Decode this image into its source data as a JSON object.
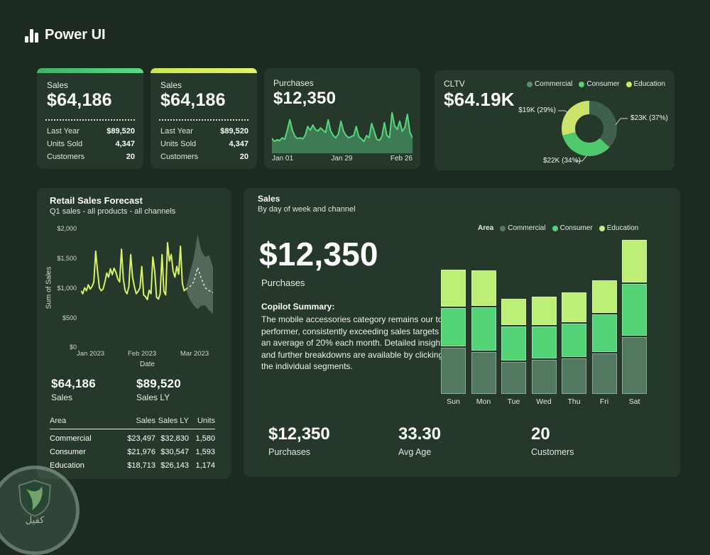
{
  "app": {
    "title": "Power UI"
  },
  "theme": {
    "page_bg": "#1c2a21",
    "card_bg": "#253829",
    "accent_green": "#57d77d",
    "accent_lime": "#d9f06a"
  },
  "cards": {
    "sales_a": {
      "label": "Sales",
      "value": "$64,186",
      "rows": [
        {
          "label": "Last Year",
          "value": "$89,520"
        },
        {
          "label": "Units Sold",
          "value": "4,347"
        },
        {
          "label": "Customers",
          "value": "20"
        }
      ]
    },
    "sales_b": {
      "label": "Sales",
      "value": "$64,186",
      "rows": [
        {
          "label": "Last Year",
          "value": "$89,520"
        },
        {
          "label": "Units Sold",
          "value": "4,347"
        },
        {
          "label": "Customers",
          "value": "20"
        }
      ]
    },
    "purchases": {
      "label": "Purchases",
      "value": "$12,350",
      "x_labels": [
        "Jan 01",
        "Jan 29",
        "Feb 26"
      ]
    },
    "cltv": {
      "label": "CLTV",
      "value": "$64.19K",
      "legend": [
        {
          "name": "Commercial",
          "color": "#5b8b6e"
        },
        {
          "name": "Consumer",
          "color": "#57cf78"
        },
        {
          "name": "Education",
          "color": "#cfe96a"
        }
      ]
    },
    "retail": {
      "title": "Retail Sales Forecast",
      "subtitle": "Q1 sales - all products - all channels",
      "y_axis_label": "Sum of Sales",
      "x_axis_label": "Date",
      "y_ticks": [
        "$2,000",
        "$1,500",
        "$1,000",
        "$500",
        "$0"
      ],
      "x_ticks": [
        "Jan 2023",
        "Feb 2023",
        "Mar 2023"
      ],
      "kpis": [
        {
          "value": "$64,186",
          "label": "Sales"
        },
        {
          "value": "$89,520",
          "label": "Sales LY"
        }
      ],
      "table": {
        "headers": [
          "Area",
          "Sales",
          "Sales LY",
          "Units"
        ],
        "rows": [
          {
            "area": "Commercial",
            "sales": "$23,497",
            "sales_ly": "$32,830",
            "units": "1,580"
          },
          {
            "area": "Consumer",
            "sales": "$21,976",
            "sales_ly": "$30,547",
            "units": "1,593"
          },
          {
            "area": "Education",
            "sales": "$18,713",
            "sales_ly": "$26,143",
            "units": "1,174"
          }
        ]
      }
    },
    "sales_by_day": {
      "title": "Sales",
      "subtitle": "By day of week and channel",
      "kpi_value": "$12,350",
      "kpi_label": "Purchases",
      "copilot_title": "Copilot Summary:",
      "copilot_body": "The mobile accessories category remains our top performer, consistently exceeding sales targets by an average of 20% each month. Detailed insights and further breakdowns are available by clicking on the individual segments.",
      "legend_title": "Area",
      "legend": [
        {
          "name": "Commercial",
          "color": "#52795f"
        },
        {
          "name": "Consumer",
          "color": "#53d276"
        },
        {
          "name": "Education",
          "color": "#bdee75"
        }
      ],
      "footer_kpis": [
        {
          "value": "$12,350",
          "label": "Purchases"
        },
        {
          "value": "33.30",
          "label": "Avg Age"
        },
        {
          "value": "20",
          "label": "Customers"
        }
      ]
    }
  },
  "watermark": {
    "text": "كفيل"
  },
  "chart_data": [
    {
      "id": "purchases-sparkline",
      "type": "area",
      "title": "Purchases",
      "total": "$12,350",
      "x_ticks": [
        "Jan 01",
        "Jan 29",
        "Feb 26"
      ],
      "line_color": "#57d77d",
      "fill_color": "#3e7a54",
      "values": [
        0.28,
        0.2,
        0.25,
        0.22,
        0.3,
        0.26,
        0.5,
        0.78,
        0.5,
        0.34,
        0.28,
        0.3,
        0.27,
        0.36,
        0.6,
        0.5,
        0.64,
        0.52,
        0.48,
        0.56,
        0.5,
        0.44,
        0.78,
        0.48,
        0.36,
        0.3,
        0.4,
        0.74,
        0.48,
        0.36,
        0.3,
        0.33,
        0.36,
        0.6,
        0.33,
        0.27,
        0.2,
        0.36,
        0.3,
        0.68,
        0.48,
        0.26,
        0.23,
        0.33,
        0.7,
        0.36,
        0.3,
        0.97,
        0.62,
        0.52,
        0.74,
        0.47,
        0.58,
        0.92,
        0.44,
        0.3
      ]
    },
    {
      "id": "cltv-donut",
      "type": "pie",
      "title": "CLTV",
      "total": "$64.19K",
      "legend_position": "top-right",
      "slices": [
        {
          "name": "Commercial",
          "value": 23000,
          "pct": 37,
          "label": "$23K (37%)",
          "color": "#3f604c"
        },
        {
          "name": "Consumer",
          "value": 22000,
          "pct": 34,
          "label": "$22K (34%)",
          "color": "#4fc86e"
        },
        {
          "name": "Education",
          "value": 19000,
          "pct": 29,
          "label": "$19K (29%)",
          "color": "#cbe36a"
        }
      ]
    },
    {
      "id": "retail-line",
      "type": "line",
      "title": "Retail Sales Forecast",
      "xlabel": "Date",
      "ylabel": "Sum of Sales",
      "ylim": [
        0,
        2000
      ],
      "x_ticks": [
        "Jan 2023",
        "Feb 2023",
        "Mar 2023"
      ],
      "line_color": "#d9f06a",
      "forecast_color": "#eaf1ea",
      "band_color": "rgba(195,215,200,0.30)",
      "actual": [
        950,
        900,
        1000,
        950,
        1050,
        980,
        1020,
        1100,
        1620,
        1280,
        1000,
        950,
        980,
        1100,
        1250,
        1180,
        1320,
        1220,
        1330,
        1260,
        1150,
        1100,
        1650,
        1150,
        950,
        900,
        1020,
        1560,
        1180,
        1020,
        900,
        940,
        1000,
        1360,
        880,
        850,
        800,
        960,
        900,
        1520,
        1280,
        840,
        810,
        900,
        1560,
        940,
        880,
        1760,
        1450,
        1560,
        1280,
        1180,
        1360,
        1230,
        1700,
        1080,
        950,
        980
      ],
      "forecast": [
        980,
        1020,
        1100,
        1340,
        1150,
        1000,
        950,
        920
      ],
      "band_upper": [
        1000,
        1250,
        1500,
        1900,
        1620,
        1520,
        1550,
        1350
      ],
      "band_lower": [
        960,
        800,
        700,
        640,
        700,
        700,
        620,
        560
      ]
    },
    {
      "id": "sales-by-day-bars",
      "type": "bar",
      "stacked": true,
      "title": "Sales by day of week and channel",
      "categories": [
        "Sun",
        "Mon",
        "Tue",
        "Wed",
        "Thu",
        "Fri",
        "Sat"
      ],
      "series": [
        {
          "name": "Commercial",
          "color": "#52795f",
          "values": [
            650,
            590,
            450,
            480,
            500,
            570,
            800
          ]
        },
        {
          "name": "Consumer",
          "color": "#53d276",
          "values": [
            540,
            610,
            480,
            450,
            470,
            530,
            730
          ]
        },
        {
          "name": "Education",
          "color": "#bdee75",
          "values": [
            520,
            500,
            370,
            400,
            420,
            460,
            600
          ]
        }
      ]
    }
  ]
}
